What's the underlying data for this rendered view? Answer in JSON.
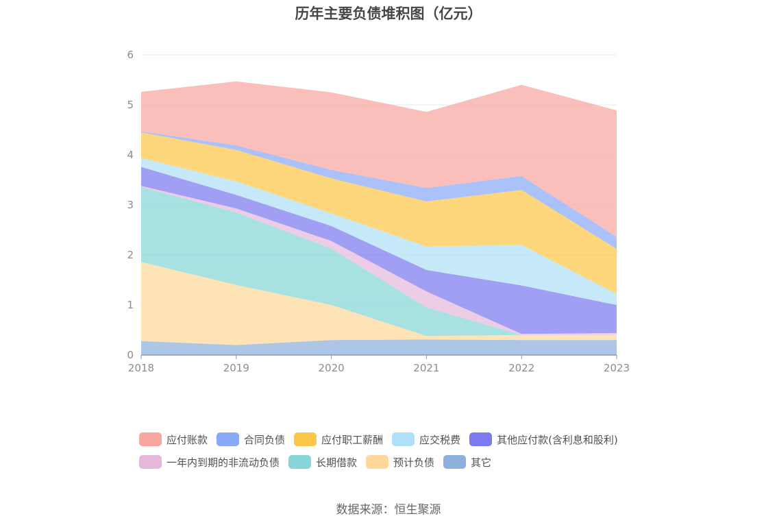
{
  "chart_data": {
    "type": "area",
    "stacked": true,
    "title": "历年主要负债堆积图（亿元）",
    "source": "数据来源：恒生聚源",
    "x": [
      "2018",
      "2019",
      "2020",
      "2021",
      "2022",
      "2023"
    ],
    "ylim": [
      0,
      6
    ],
    "yticks": [
      "0",
      "1",
      "2",
      "3",
      "4",
      "5",
      "6"
    ],
    "grid": true,
    "legend_position": "bottom",
    "series_bottom_to_top": [
      {
        "name": "其它",
        "color": "#8eb0dd",
        "values": [
          0.28,
          0.2,
          0.3,
          0.31,
          0.3,
          0.3
        ]
      },
      {
        "name": "预计负债",
        "color": "#fdd89a",
        "values": [
          1.58,
          1.2,
          0.7,
          0.07,
          0.1,
          0.1
        ]
      },
      {
        "name": "长期借款",
        "color": "#87d6d7",
        "values": [
          1.5,
          1.45,
          1.13,
          0.57,
          0.0,
          0.0
        ]
      },
      {
        "name": "一年内到期的非流动负债",
        "color": "#e6b8dc",
        "values": [
          0.02,
          0.08,
          0.15,
          0.32,
          0.02,
          0.04
        ]
      },
      {
        "name": "其他应付款(含利息和股利)",
        "color": "#7b7af0",
        "values": [
          0.38,
          0.27,
          0.3,
          0.43,
          0.97,
          0.56
        ]
      },
      {
        "name": "应交税费",
        "color": "#aee0f7",
        "values": [
          0.18,
          0.27,
          0.25,
          0.47,
          0.81,
          0.22
        ]
      },
      {
        "name": "应付职工薪酬",
        "color": "#fdc84a",
        "values": [
          0.51,
          0.63,
          0.7,
          0.9,
          1.1,
          0.9
        ]
      },
      {
        "name": "合同负债",
        "color": "#8aa9f8",
        "values": [
          0.02,
          0.09,
          0.17,
          0.27,
          0.28,
          0.24
        ]
      },
      {
        "name": "应付账款",
        "color": "#f8a6a0",
        "values": [
          0.79,
          1.28,
          1.55,
          1.52,
          1.82,
          2.53
        ]
      }
    ],
    "legend_rows": [
      [
        "应付账款",
        "合同负债",
        "应付职工薪酬",
        "应交税费",
        "其他应付款(含利息和股利)"
      ],
      [
        "一年内到期的非流动负债",
        "长期借款",
        "预计负债",
        "其它"
      ]
    ],
    "colors": {
      "grid": "#e6e9ef",
      "axis": "#8e95a3",
      "tick_label": "#8c8c8c"
    }
  }
}
